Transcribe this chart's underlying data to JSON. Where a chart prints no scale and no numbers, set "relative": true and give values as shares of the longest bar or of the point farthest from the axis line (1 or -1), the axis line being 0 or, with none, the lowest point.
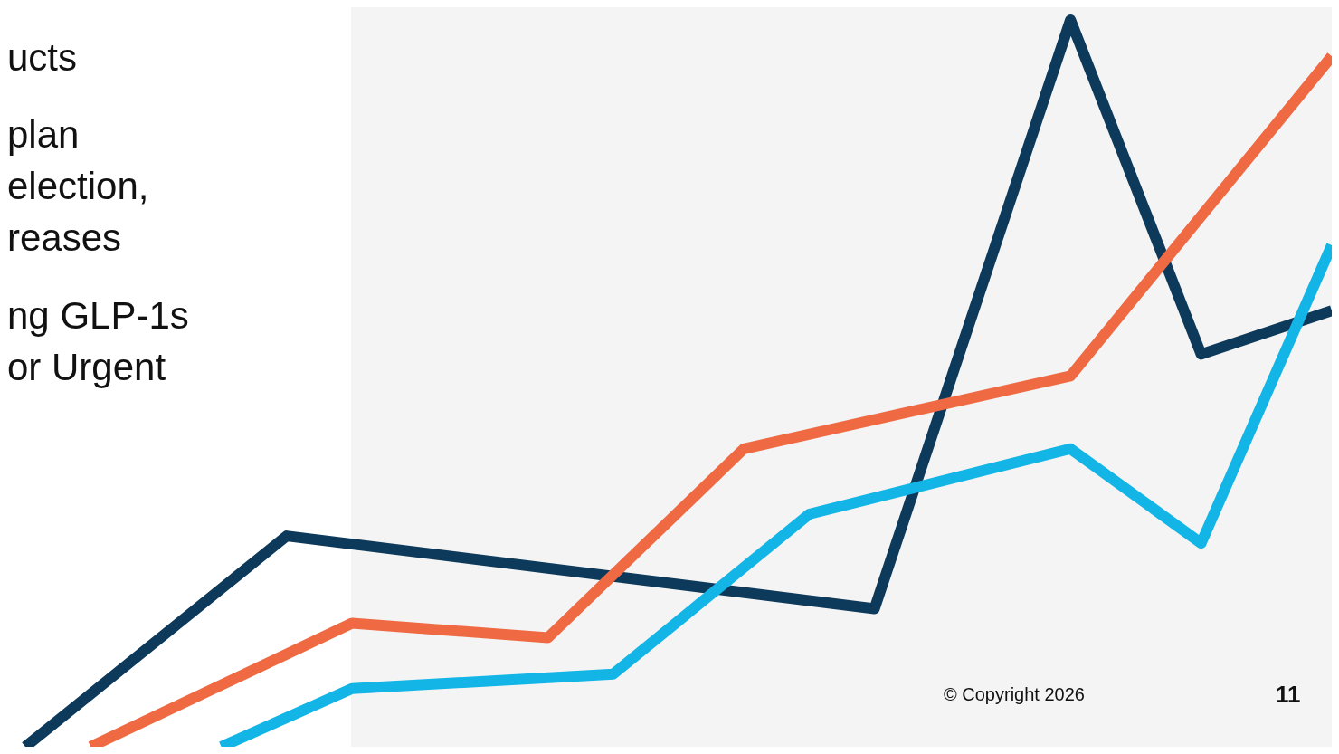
{
  "chart_data": {
    "type": "line",
    "relative": true,
    "line_style": "solid",
    "categories": [
      null,
      null,
      null,
      null,
      null,
      null,
      null,
      null,
      null,
      null,
      null,
      null,
      null,
      null,
      null,
      null,
      null,
      null,
      null,
      null,
      null
    ],
    "annotations": [
      "ucts",
      "plan",
      "election,",
      "reases",
      "ng GLP-1s",
      "or Urgent",
      "© Copyright 2026",
      "11"
    ],
    "series": [
      {
        "color": "#0d3a5a",
        "values": [
          0,
          null,
          null,
          null,
          0.29,
          null,
          null,
          null,
          null,
          null,
          null,
          null,
          null,
          0.19,
          null,
          null,
          1,
          null,
          0.54,
          null,
          0.6
        ]
      },
      {
        "color": "#ef6a43",
        "values": [
          null,
          0,
          null,
          null,
          null,
          0.17,
          null,
          null,
          0.15,
          null,
          null,
          0.41,
          null,
          null,
          null,
          null,
          0.51,
          null,
          null,
          null,
          0.95
        ]
      },
      {
        "color": "#12b5e5",
        "values": [
          null,
          null,
          null,
          0,
          null,
          0.08,
          null,
          null,
          null,
          0.1,
          null,
          null,
          0.32,
          null,
          null,
          null,
          0.41,
          null,
          0.28,
          null,
          0.69
        ]
      }
    ]
  }
}
